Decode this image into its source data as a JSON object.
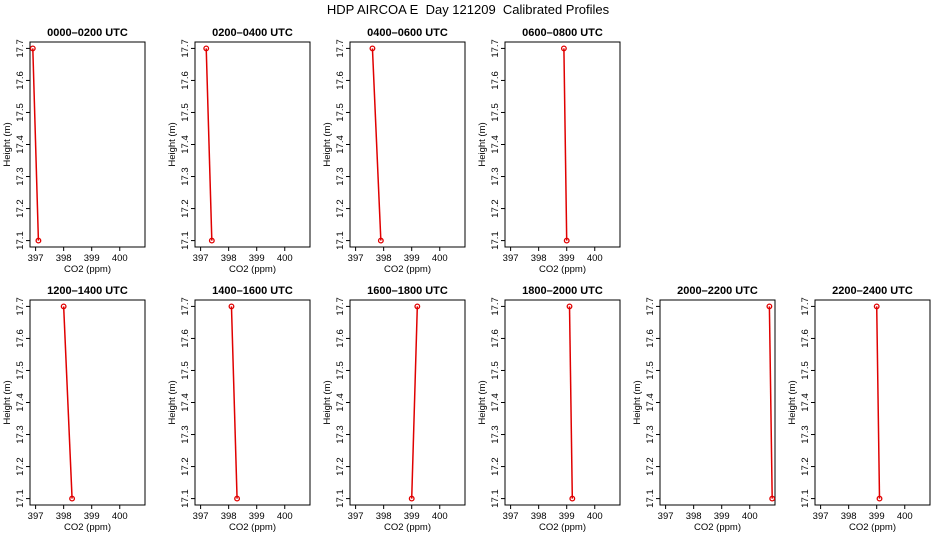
{
  "page": {
    "title": "HDP AIRCOA E  Day 121209  Calibrated Profiles"
  },
  "colors": {
    "profile": "#e00000",
    "frame": "#000000"
  },
  "chart_data": [
    {
      "type": "line",
      "title": "0000–0200 UTC",
      "xlabel": "CO2 (ppm)",
      "ylabel": "Height (m)",
      "xlim": [
        396.8,
        400.9
      ],
      "ylim": [
        17.08,
        17.72
      ],
      "xticks": [
        397,
        398,
        399,
        400
      ],
      "yticks": [
        17.1,
        17.2,
        17.3,
        17.4,
        17.5,
        17.6,
        17.7
      ],
      "x": [
        396.9,
        397.1
      ],
      "y": [
        17.7,
        17.1
      ]
    },
    {
      "type": "line",
      "title": "0200–0400 UTC",
      "xlabel": "CO2 (ppm)",
      "ylabel": "Height (m)",
      "xlim": [
        396.8,
        400.9
      ],
      "ylim": [
        17.08,
        17.72
      ],
      "xticks": [
        397,
        398,
        399,
        400
      ],
      "yticks": [
        17.1,
        17.2,
        17.3,
        17.4,
        17.5,
        17.6,
        17.7
      ],
      "x": [
        397.2,
        397.4
      ],
      "y": [
        17.7,
        17.1
      ]
    },
    {
      "type": "line",
      "title": "0400–0600 UTC",
      "xlabel": "CO2 (ppm)",
      "ylabel": "Height (m)",
      "xlim": [
        396.8,
        400.9
      ],
      "ylim": [
        17.08,
        17.72
      ],
      "xticks": [
        397,
        398,
        399,
        400
      ],
      "yticks": [
        17.1,
        17.2,
        17.3,
        17.4,
        17.5,
        17.6,
        17.7
      ],
      "x": [
        397.6,
        397.9
      ],
      "y": [
        17.7,
        17.1
      ]
    },
    {
      "type": "line",
      "title": "0600–0800 UTC",
      "xlabel": "CO2 (ppm)",
      "ylabel": "Height (m)",
      "xlim": [
        396.8,
        400.9
      ],
      "ylim": [
        17.08,
        17.72
      ],
      "xticks": [
        397,
        398,
        399,
        400
      ],
      "yticks": [
        17.1,
        17.2,
        17.3,
        17.4,
        17.5,
        17.6,
        17.7
      ],
      "x": [
        398.9,
        399.0
      ],
      "y": [
        17.7,
        17.1
      ]
    },
    {
      "type": "line",
      "title": "1200–1400 UTC",
      "xlabel": "CO2 (ppm)",
      "ylabel": "Height (m)",
      "xlim": [
        396.8,
        400.9
      ],
      "ylim": [
        17.08,
        17.72
      ],
      "xticks": [
        397,
        398,
        399,
        400
      ],
      "yticks": [
        17.1,
        17.2,
        17.3,
        17.4,
        17.5,
        17.6,
        17.7
      ],
      "x": [
        398.0,
        398.3
      ],
      "y": [
        17.7,
        17.1
      ]
    },
    {
      "type": "line",
      "title": "1400–1600 UTC",
      "xlabel": "CO2 (ppm)",
      "ylabel": "Height (m)",
      "xlim": [
        396.8,
        400.9
      ],
      "ylim": [
        17.08,
        17.72
      ],
      "xticks": [
        397,
        398,
        399,
        400
      ],
      "yticks": [
        17.1,
        17.2,
        17.3,
        17.4,
        17.5,
        17.6,
        17.7
      ],
      "x": [
        398.1,
        398.3
      ],
      "y": [
        17.7,
        17.1
      ]
    },
    {
      "type": "line",
      "title": "1600–1800 UTC",
      "xlabel": "CO2 (ppm)",
      "ylabel": "Height (m)",
      "xlim": [
        396.8,
        400.9
      ],
      "ylim": [
        17.08,
        17.72
      ],
      "xticks": [
        397,
        398,
        399,
        400
      ],
      "yticks": [
        17.1,
        17.2,
        17.3,
        17.4,
        17.5,
        17.6,
        17.7
      ],
      "x": [
        399.2,
        399.0
      ],
      "y": [
        17.7,
        17.1
      ]
    },
    {
      "type": "line",
      "title": "1800–2000 UTC",
      "xlabel": "CO2 (ppm)",
      "ylabel": "Height (m)",
      "xlim": [
        396.8,
        400.9
      ],
      "ylim": [
        17.08,
        17.72
      ],
      "xticks": [
        397,
        398,
        399,
        400
      ],
      "yticks": [
        17.1,
        17.2,
        17.3,
        17.4,
        17.5,
        17.6,
        17.7
      ],
      "x": [
        399.1,
        399.2
      ],
      "y": [
        17.7,
        17.1
      ]
    },
    {
      "type": "line",
      "title": "2000–2200 UTC",
      "xlabel": "CO2 (ppm)",
      "ylabel": "Height (m)",
      "xlim": [
        396.8,
        400.9
      ],
      "ylim": [
        17.08,
        17.72
      ],
      "xticks": [
        397,
        398,
        399,
        400
      ],
      "yticks": [
        17.1,
        17.2,
        17.3,
        17.4,
        17.5,
        17.6,
        17.7
      ],
      "x": [
        400.7,
        400.8
      ],
      "y": [
        17.7,
        17.1
      ]
    },
    {
      "type": "line",
      "title": "2200–2400 UTC",
      "xlabel": "CO2 (ppm)",
      "ylabel": "Height (m)",
      "xlim": [
        396.8,
        400.9
      ],
      "ylim": [
        17.08,
        17.72
      ],
      "xticks": [
        397,
        398,
        399,
        400
      ],
      "yticks": [
        17.1,
        17.2,
        17.3,
        17.4,
        17.5,
        17.6,
        17.7
      ],
      "x": [
        399.0,
        399.1
      ],
      "y": [
        17.7,
        17.1
      ]
    }
  ]
}
